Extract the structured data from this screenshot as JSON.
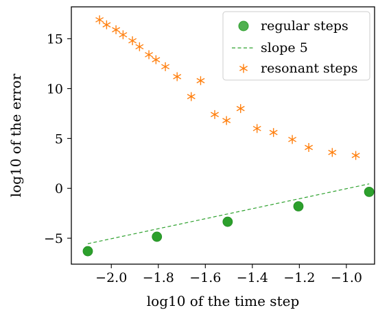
{
  "chart_data": {
    "type": "scatter",
    "title": "",
    "xlabel": "log10 of the time step",
    "ylabel": "log10 of the error",
    "xlim": [
      -2.17,
      -0.88
    ],
    "ylim": [
      -7.6,
      18.2
    ],
    "xticks": [
      -2.0,
      -1.8,
      -1.6,
      -1.4,
      -1.2,
      -1.0
    ],
    "xtick_labels": [
      "−2.0",
      "−1.8",
      "−1.6",
      "−1.4",
      "−1.2",
      "−1.0"
    ],
    "yticks": [
      -5,
      0,
      5,
      10,
      15
    ],
    "ytick_labels": [
      "−5",
      "0",
      "5",
      "10",
      "15"
    ],
    "grid": false,
    "legend_position": "top-right",
    "series": [
      {
        "name": "regular steps",
        "kind": "scatter",
        "marker": "circle",
        "color": "#2ca02c",
        "x": [
          -2.1,
          -1.806,
          -1.505,
          -1.204,
          -0.903
        ],
        "y": [
          -6.3,
          -4.85,
          -3.35,
          -1.8,
          -0.35
        ]
      },
      {
        "name": "slope 5",
        "kind": "line",
        "style": "dashed",
        "color": "#2ca02c",
        "x": [
          -2.1,
          -0.903
        ],
        "y": [
          -5.55,
          0.45
        ]
      },
      {
        "name": "resonant steps",
        "kind": "scatter",
        "marker": "asterisk",
        "color": "#ff7f0e",
        "x": [
          -2.05,
          -2.02,
          -1.98,
          -1.95,
          -1.91,
          -1.88,
          -1.84,
          -1.81,
          -1.77,
          -1.72,
          -1.66,
          -1.62,
          -1.56,
          -1.51,
          -1.45,
          -1.38,
          -1.31,
          -1.23,
          -1.16,
          -1.06,
          -0.96
        ],
        "y": [
          16.9,
          16.4,
          15.9,
          15.4,
          14.8,
          14.2,
          13.4,
          12.9,
          12.2,
          11.2,
          9.2,
          10.8,
          7.4,
          6.8,
          8.0,
          6.0,
          5.6,
          4.9,
          4.1,
          3.6,
          3.3
        ]
      }
    ]
  }
}
